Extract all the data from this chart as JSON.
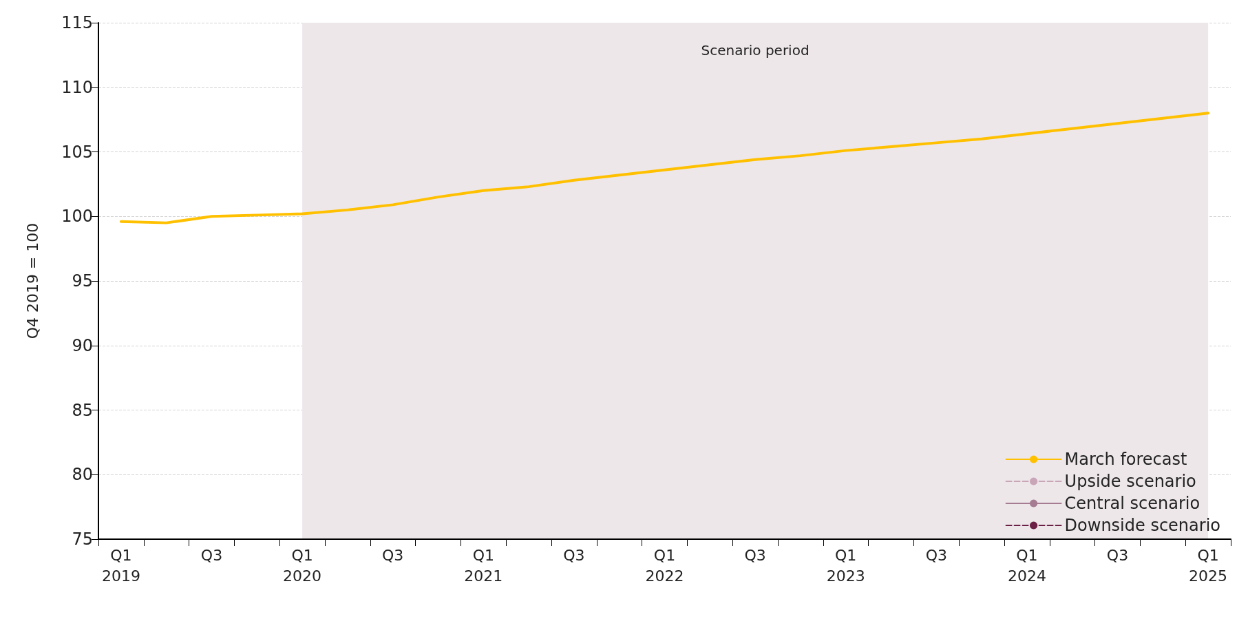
{
  "chart_data": {
    "type": "line",
    "ylabel": "Q4 2019 = 100",
    "categories": [
      "Q1 2019",
      null,
      "Q3",
      null,
      "Q1 2020",
      null,
      "Q3",
      null,
      "Q1 2021",
      null,
      "Q3",
      null,
      "Q1 2022",
      null,
      "Q3",
      null,
      "Q1 2023",
      null,
      "Q3",
      null,
      "Q1 2024",
      null,
      "Q3",
      null,
      "Q1 2025"
    ],
    "series": [
      {
        "name": "March forecast",
        "color": "#ffc000",
        "line_style": "solid",
        "values": [
          99.6,
          99.5,
          100.0,
          100.1,
          100.2,
          100.5,
          100.9,
          101.5,
          102.0,
          102.3,
          102.8,
          103.2,
          103.6,
          104.0,
          104.4,
          104.7,
          105.1,
          105.4,
          105.7,
          106.0,
          106.4,
          106.8,
          107.2,
          107.6,
          108.0
        ]
      },
      {
        "name": "Upside scenario",
        "color": "#c9a5b8",
        "line_style": "dashed",
        "values": [
          null,
          null,
          null,
          null,
          null,
          null,
          null,
          null,
          null,
          null,
          null,
          null,
          null,
          null,
          null,
          null,
          null,
          null,
          null,
          null,
          null,
          null,
          null,
          null,
          null
        ]
      },
      {
        "name": "Central scenario",
        "color": "#a67c93",
        "line_style": "solid",
        "values": [
          null,
          null,
          null,
          null,
          null,
          null,
          null,
          null,
          null,
          null,
          null,
          null,
          null,
          null,
          null,
          null,
          null,
          null,
          null,
          null,
          null,
          null,
          null,
          null,
          null
        ]
      },
      {
        "name": "Downside scenario",
        "color": "#6b2146",
        "line_style": "dashed",
        "values": [
          null,
          null,
          null,
          null,
          null,
          null,
          null,
          null,
          null,
          null,
          null,
          null,
          null,
          null,
          null,
          null,
          null,
          null,
          null,
          null,
          null,
          null,
          null,
          null,
          null
        ]
      }
    ],
    "bands": [
      {
        "axis": "x",
        "from": "Q1 2020",
        "to": "Q1 2025",
        "label": "Scenario period",
        "color": "#ede7ea"
      }
    ],
    "ylim": [
      75,
      115
    ],
    "yticks": [
      75,
      80,
      85,
      90,
      95,
      100,
      105,
      110,
      115
    ],
    "grid": "y",
    "legend": "bottom right",
    "marker": "none"
  }
}
